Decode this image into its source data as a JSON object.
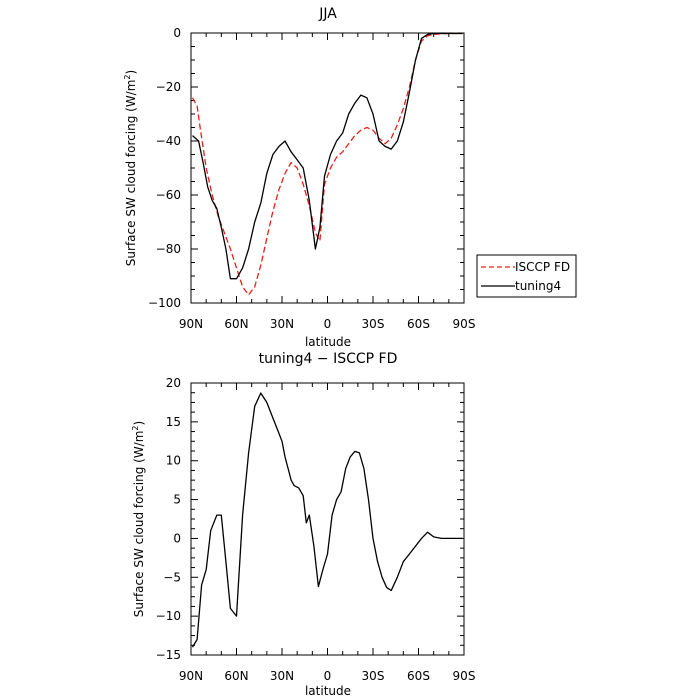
{
  "chart_data": [
    {
      "type": "line",
      "title": "JJA",
      "xlabel": "latitude",
      "ylabel": "Surface SW cloud forcing (W/m²)",
      "ylabel_main": "Surface SW cloud forcing (W/m",
      "ylabel_sup": "2",
      "ylabel_end": ")",
      "xlim": [
        90,
        -90
      ],
      "ylim": [
        -100,
        0
      ],
      "xticks": [
        90,
        60,
        30,
        0,
        -30,
        -60,
        -90
      ],
      "xtick_labels": [
        "90N",
        "60N",
        "30N",
        "0",
        "30S",
        "60S",
        "90S"
      ],
      "yticks": [
        -100,
        -80,
        -60,
        -40,
        -20,
        0
      ],
      "ytick_labels": [
        "−100",
        "−80",
        "−60",
        "−40",
        "−20",
        "0"
      ],
      "legend": {
        "position": "right"
      },
      "series": [
        {
          "name": "ISCCP FD",
          "color": "#e8201a",
          "dash": "dashed",
          "x": [
            89,
            86,
            84,
            80,
            76,
            72,
            68,
            64,
            60,
            56,
            52,
            48,
            44,
            40,
            36,
            32,
            28,
            24,
            20,
            16,
            12,
            8,
            5,
            2,
            -2,
            -6,
            -10,
            -14,
            -18,
            -22,
            -26,
            -30,
            -34,
            -38,
            -42,
            -46,
            -50,
            -54,
            -58,
            -62,
            -66,
            -70,
            -74,
            -80,
            -86,
            -89
          ],
          "values": [
            -24,
            -27,
            -35,
            -50,
            -60,
            -68,
            -74,
            -80,
            -87,
            -94,
            -97,
            -94,
            -86,
            -76,
            -66,
            -58,
            -52,
            -48,
            -50,
            -56,
            -64,
            -74,
            -77,
            -56,
            -50,
            -46,
            -44,
            -41,
            -38,
            -36,
            -35,
            -36,
            -39,
            -41,
            -39,
            -34,
            -28,
            -20,
            -10,
            -3,
            -1,
            -0.5,
            -0.3,
            -0.2,
            -0.2,
            -0.2
          ]
        },
        {
          "name": "tuning4",
          "color": "#000000",
          "dash": "solid",
          "x": [
            89,
            85,
            82,
            79,
            76,
            73,
            70,
            67,
            64,
            60,
            56,
            52,
            48,
            44,
            40,
            36,
            32,
            28,
            24,
            20,
            16,
            12,
            8,
            5,
            2,
            -2,
            -6,
            -10,
            -14,
            -18,
            -22,
            -26,
            -30,
            -34,
            -38,
            -42,
            -46,
            -50,
            -54,
            -58,
            -62,
            -66,
            -70,
            -76,
            -84,
            -89
          ],
          "values": [
            -38,
            -40,
            -48,
            -57,
            -62,
            -65,
            -72,
            -80,
            -91,
            -91,
            -87,
            -80,
            -70,
            -63,
            -52,
            -45,
            -42,
            -40,
            -44,
            -47,
            -50,
            -62,
            -80,
            -72,
            -53,
            -45,
            -40,
            -37,
            -30,
            -26,
            -23,
            -24,
            -30,
            -40,
            -42,
            -43,
            -40,
            -33,
            -22,
            -10,
            -2,
            -0.5,
            -0.2,
            -0.2,
            -0.2,
            -0.2
          ]
        }
      ]
    },
    {
      "type": "line",
      "title": "tuning4 − ISCCP FD",
      "xlabel": "latitude",
      "ylabel": "Surface SW cloud forcing (W/m²)",
      "ylabel_main": "Surface SW cloud forcing (W/m",
      "ylabel_sup": "2",
      "ylabel_end": ")",
      "xlim": [
        90,
        -90
      ],
      "ylim": [
        -15,
        20
      ],
      "xticks": [
        90,
        60,
        30,
        0,
        -30,
        -60,
        -90
      ],
      "xtick_labels": [
        "90N",
        "60N",
        "30N",
        "0",
        "30S",
        "60S",
        "90S"
      ],
      "yticks": [
        -15,
        -10,
        -5,
        0,
        5,
        10,
        15,
        20
      ],
      "ytick_labels": [
        "−15",
        "−10",
        "−5",
        "0",
        "5",
        "10",
        "15",
        "20"
      ],
      "series": [
        {
          "name": "",
          "color": "#000000",
          "dash": "solid",
          "x": [
            89,
            86,
            83,
            80,
            77,
            73,
            70,
            67,
            64,
            60,
            56,
            52,
            48,
            44,
            40,
            36,
            32,
            30,
            28,
            26,
            24,
            22,
            19,
            16,
            14,
            12,
            9,
            6,
            3,
            0,
            -3,
            -6,
            -9,
            -12,
            -15,
            -18,
            -21,
            -24,
            -27,
            -30,
            -33,
            -36,
            -39,
            -42,
            -46,
            -50,
            -54,
            -58,
            -62,
            -66,
            -70,
            -75,
            -80,
            -89
          ],
          "values": [
            -14,
            -13,
            -6,
            -4,
            1,
            3,
            3,
            -3,
            -9,
            -10,
            3,
            11,
            17,
            18.7,
            17.5,
            15.5,
            13.5,
            12.5,
            10.5,
            9,
            7.5,
            6.8,
            6.5,
            5.5,
            2,
            3,
            -1,
            -6.2,
            -4,
            -2,
            3,
            5,
            6,
            9,
            10.5,
            11.2,
            11,
            9,
            5,
            0,
            -3,
            -5,
            -6.3,
            -6.7,
            -5,
            -3,
            -2,
            -1,
            0,
            0.8,
            0.2,
            0,
            0,
            0
          ]
        }
      ]
    }
  ]
}
